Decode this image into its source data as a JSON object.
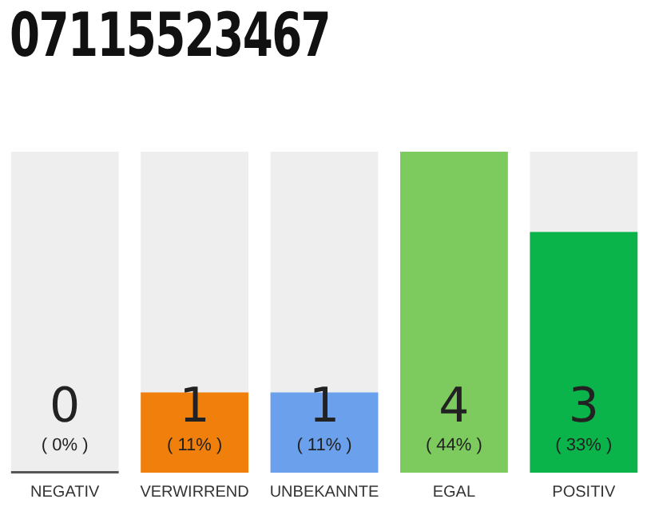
{
  "chart_data": {
    "type": "bar",
    "title": "07115523467",
    "categories": [
      "NEGATIV",
      "VERWIRREND",
      "UNBEKANNTE",
      "EGAL",
      "POSITIV"
    ],
    "values": [
      0,
      1,
      1,
      4,
      3
    ],
    "colors": [
      "#555555",
      "#f07f0c",
      "#6aa0ec",
      "#7dcb5e",
      "#0bb44a"
    ],
    "value_labels": [
      "0",
      "1",
      "1",
      "4",
      "3"
    ],
    "annotations": [
      "( 0% )",
      "( 11% )",
      "( 11% )",
      "( 44% )",
      "( 33% )"
    ],
    "grid": false,
    "legend": false,
    "tick_labels": "x"
  }
}
